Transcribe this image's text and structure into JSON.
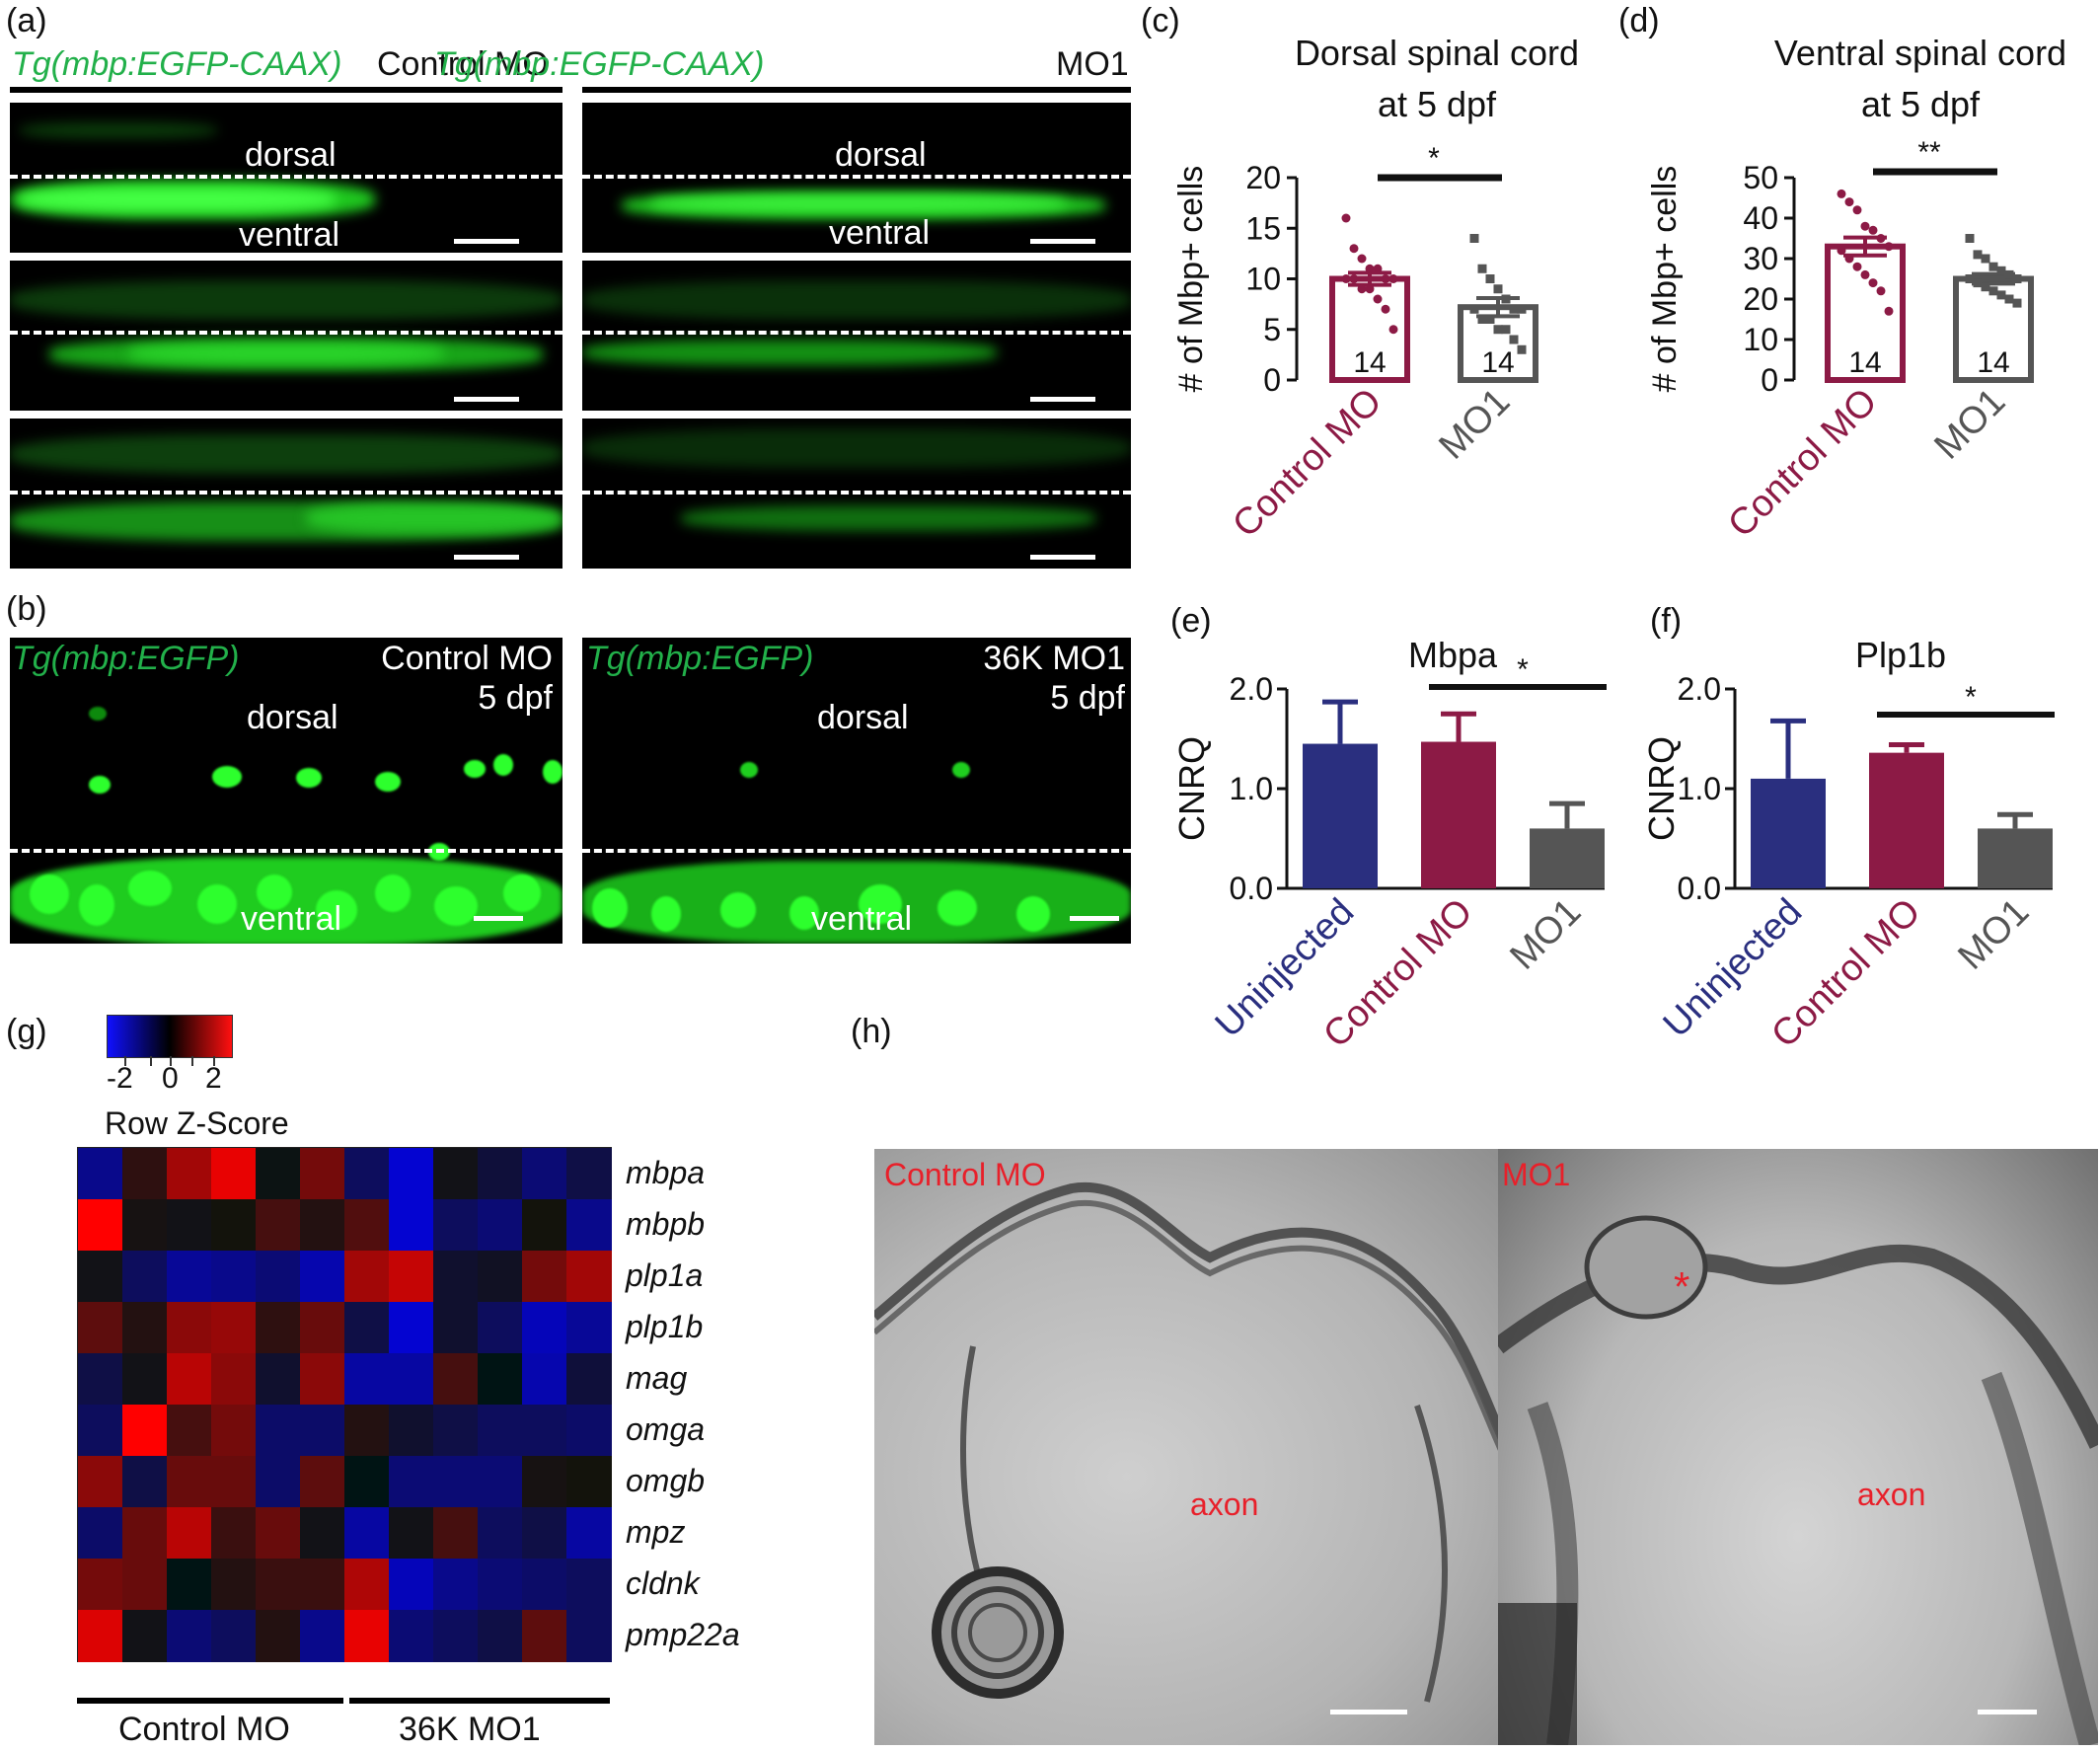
{
  "panels": {
    "a": {
      "label": "(a)",
      "left_title_green": "Tg(mbp:EGFP-CAAX)",
      "left_title": "Control MO",
      "right_title_green": "Tg(mbp:EGFP-CAAX)",
      "right_title": "MO1",
      "dorsal": "dorsal",
      "ventral": "ventral"
    },
    "b": {
      "label": "(b)",
      "left_green": "Tg(mbp:EGFP)",
      "left_line1": "Control MO",
      "left_line2": "5 dpf",
      "right_green": "Tg(mbp:EGFP)",
      "right_line1": "36K MO1",
      "right_line2": "5 dpf",
      "dorsal": "dorsal",
      "ventral": "ventral"
    },
    "c": {
      "label": "(c)"
    },
    "d": {
      "label": "(d)"
    },
    "e": {
      "label": "(e)"
    },
    "f": {
      "label": "(f)"
    },
    "g": {
      "label": "(g)",
      "legend_ticks": [
        "-2",
        "0",
        "2"
      ],
      "legend_title": "Row Z-Score",
      "group_left": "Control MO",
      "group_right": "36K MO1"
    },
    "h": {
      "label": "(h)",
      "left_label": "Control MO",
      "right_label": "MO1",
      "axon": "axon",
      "asterisk": "*"
    }
  },
  "colors": {
    "control": "#8c1a45",
    "mo1": "#555555",
    "uninjected": "#2a2f7f",
    "egfp": "#22b04a",
    "em_label": "#e8202a"
  },
  "chart_data": [
    {
      "id": "c",
      "type": "bar",
      "title": "Dorsal spinal cord at 5 dpf",
      "title_lines": [
        "Dorsal spinal cord",
        "at 5 dpf"
      ],
      "ylabel": "# of Mbp+ cells",
      "ylim": [
        0,
        20
      ],
      "yticks": [
        "0",
        "5",
        "10",
        "15",
        "20"
      ],
      "categories": [
        "Control MO",
        "MO1"
      ],
      "values": [
        10,
        7.2
      ],
      "errors": [
        0.6,
        0.9
      ],
      "n_labels": [
        "14",
        "14"
      ],
      "significance": "*",
      "points": [
        [
          16,
          13,
          12,
          11,
          11,
          10,
          10,
          10,
          10,
          9,
          9,
          8,
          7,
          5
        ],
        [
          14,
          11,
          10,
          9,
          8,
          7,
          7,
          7,
          6,
          6,
          5,
          5,
          4,
          3
        ]
      ]
    },
    {
      "id": "d",
      "type": "bar",
      "title": "Ventral spinal cord at 5 dpf",
      "title_lines": [
        "Ventral spinal cord",
        "at 5 dpf"
      ],
      "ylabel": "# of Mbp+ cells",
      "ylim": [
        0,
        50
      ],
      "yticks": [
        "0",
        "10",
        "20",
        "30",
        "40",
        "50"
      ],
      "categories": [
        "Control MO",
        "MO1"
      ],
      "values": [
        33,
        25
      ],
      "errors": [
        2.2,
        1.2
      ],
      "n_labels": [
        "14",
        "14"
      ],
      "significance": "**",
      "points": [
        [
          46,
          44,
          42,
          38,
          37,
          35,
          33,
          32,
          30,
          28,
          26,
          24,
          22,
          17
        ],
        [
          35,
          31,
          30,
          28,
          27,
          26,
          25,
          25,
          24,
          23,
          22,
          21,
          20,
          19
        ]
      ]
    },
    {
      "id": "e",
      "type": "bar",
      "title": "Mbpa",
      "ylabel": "CNRQ",
      "ylim": [
        0,
        2.0
      ],
      "yticks": [
        "0.0",
        "1.0",
        "2.0"
      ],
      "categories": [
        "Uninjected",
        "Control MO",
        "MO1"
      ],
      "values": [
        1.45,
        1.47,
        0.6
      ],
      "errors": [
        0.42,
        0.28,
        0.25
      ],
      "significance": "*"
    },
    {
      "id": "f",
      "type": "bar",
      "title": "Plp1b",
      "ylabel": "CNRQ",
      "ylim": [
        0,
        2.0
      ],
      "yticks": [
        "0.0",
        "1.0",
        "2.0"
      ],
      "categories": [
        "Uninjected",
        "Control MO",
        "MO1"
      ],
      "values": [
        1.1,
        1.36,
        0.6
      ],
      "errors": [
        0.58,
        0.08,
        0.14
      ],
      "significance": "*"
    },
    {
      "id": "g",
      "type": "heatmap",
      "rows": [
        "mbpa",
        "mbpb",
        "plp1a",
        "plp1b",
        "mag",
        "omga",
        "omgb",
        "mpz",
        "cldnk",
        "pmp22a"
      ],
      "columns_groups": [
        "Control MO",
        "36K MO1"
      ],
      "value_range": [
        -2,
        2
      ],
      "values": [
        [
          -1.2,
          0.4,
          1.4,
          2.0,
          0.1,
          1.0,
          -0.8,
          -1.8,
          -0.2,
          -0.5,
          -1.0,
          -0.6
        ],
        [
          2.2,
          0.2,
          -0.2,
          -0.1,
          0.6,
          0.3,
          0.7,
          -1.8,
          -0.8,
          -1.0,
          -0.1,
          -1.2
        ],
        [
          -0.2,
          -0.8,
          -1.3,
          -1.2,
          -1.0,
          -1.5,
          1.4,
          1.7,
          -0.4,
          -0.3,
          1.0,
          1.4
        ],
        [
          0.8,
          0.3,
          1.2,
          1.3,
          0.4,
          0.9,
          -0.6,
          -1.8,
          -0.4,
          -0.8,
          -1.6,
          -1.3
        ],
        [
          -0.6,
          -0.2,
          1.6,
          1.2,
          -0.4,
          1.2,
          -1.4,
          -1.4,
          0.6,
          0.0,
          -1.5,
          -0.5
        ],
        [
          -0.8,
          2.6,
          0.6,
          1.0,
          -0.9,
          -0.9,
          0.3,
          -0.4,
          -0.6,
          -0.8,
          -0.8,
          -0.9
        ],
        [
          1.2,
          -0.6,
          0.9,
          0.9,
          -0.9,
          0.8,
          0.0,
          -1.0,
          -1.0,
          -1.0,
          0.2,
          -0.1
        ],
        [
          -0.9,
          0.9,
          1.6,
          0.5,
          0.9,
          -0.2,
          -1.4,
          -0.2,
          0.6,
          -0.8,
          -0.6,
          -1.4
        ],
        [
          1.0,
          0.9,
          0.0,
          0.3,
          0.5,
          0.5,
          1.5,
          -1.6,
          -1.2,
          -1.0,
          -0.9,
          -0.8
        ],
        [
          1.9,
          -0.2,
          -1.0,
          -0.8,
          0.3,
          -1.2,
          2.0,
          -1.0,
          -0.8,
          -0.6,
          0.8,
          -0.8
        ]
      ]
    }
  ]
}
